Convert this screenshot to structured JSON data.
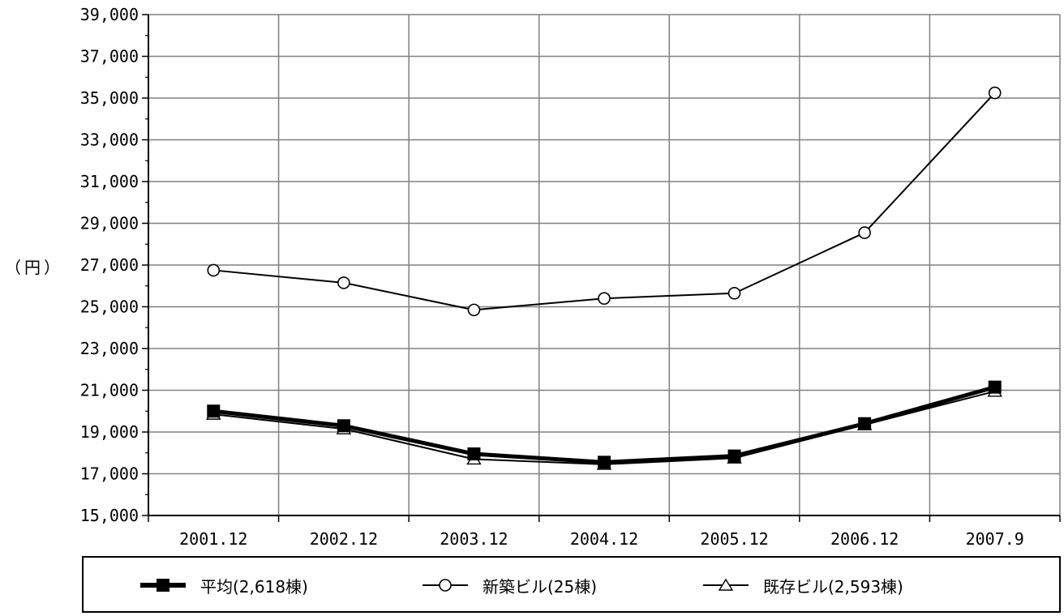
{
  "chart_data": {
    "type": "line",
    "ylabel": "（円）",
    "ylim": [
      15000,
      39000
    ],
    "yticks": [
      15000,
      17000,
      19000,
      21000,
      23000,
      25000,
      27000,
      29000,
      31000,
      33000,
      35000,
      37000,
      39000
    ],
    "ytick_labels": [
      "15,000",
      "17,000",
      "19,000",
      "21,000",
      "23,000",
      "25,000",
      "27,000",
      "29,000",
      "31,000",
      "33,000",
      "35,000",
      "37,000",
      "39,000"
    ],
    "categories": [
      "2001.12",
      "2002.12",
      "2003.12",
      "2004.12",
      "2005.12",
      "2006.12",
      "2007.9"
    ],
    "grid": true,
    "legend_position": "bottom",
    "series": [
      {
        "name": "平均(2,618棟)",
        "marker": "filled-square",
        "line": "thick",
        "values": [
          20000,
          19300,
          17950,
          17550,
          17850,
          19400,
          21150
        ]
      },
      {
        "name": "新築ビル(25棟)",
        "marker": "hollow-circle",
        "line": "thin",
        "values": [
          26750,
          26150,
          24850,
          25400,
          25650,
          28550,
          35250
        ]
      },
      {
        "name": "既存ビル(2,593棟)",
        "marker": "hollow-triangle",
        "line": "thin",
        "values": [
          19850,
          19150,
          17700,
          17450,
          17750,
          19350,
          20950
        ]
      }
    ]
  },
  "colors": {
    "line": "#000000",
    "grid": "#808080",
    "background": "#ffffff"
  }
}
